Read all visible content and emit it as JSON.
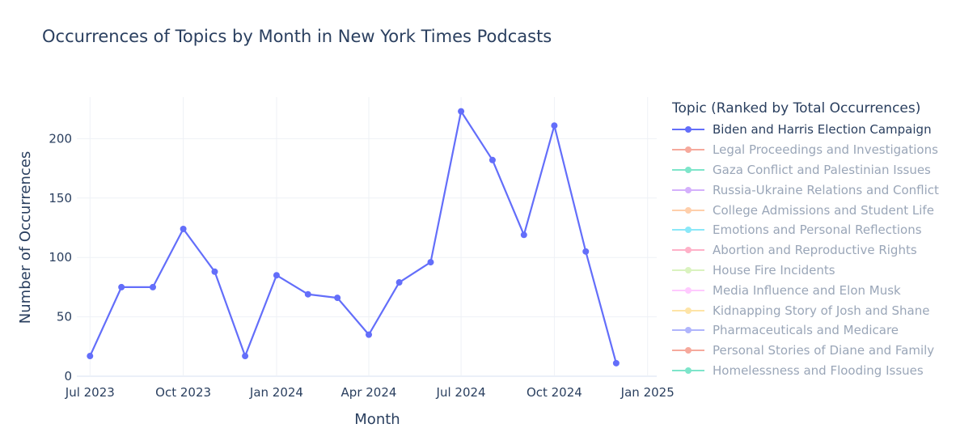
{
  "title": "Occurrences of Topics by Month in New York Times Podcasts",
  "legend_title": "Topic (Ranked by Total Occurrences)",
  "legend_items": [
    {
      "label": "Biden and Harris Election Campaign",
      "color": "#636efa",
      "active": true
    },
    {
      "label": "Legal Proceedings and Investigations",
      "color": "#ef553b",
      "active": false
    },
    {
      "label": "Gaza Conflict and Palestinian Issues",
      "color": "#00cc96",
      "active": false
    },
    {
      "label": "Russia-Ukraine Relations and Conflict",
      "color": "#ab63fa",
      "active": false
    },
    {
      "label": "College Admissions and Student Life",
      "color": "#ffa15a",
      "active": false
    },
    {
      "label": "Emotions and Personal Reflections",
      "color": "#19d3f3",
      "active": false
    },
    {
      "label": "Abortion and Reproductive Rights",
      "color": "#ff6692",
      "active": false
    },
    {
      "label": "House Fire Incidents",
      "color": "#b6e880",
      "active": false
    },
    {
      "label": "Media Influence and Elon Musk",
      "color": "#ff97ff",
      "active": false
    },
    {
      "label": "Kidnapping Story of Josh and Shane",
      "color": "#fecb52",
      "active": false
    },
    {
      "label": "Pharmaceuticals and Medicare",
      "color": "#636efa",
      "active": false
    },
    {
      "label": "Personal Stories of Diane and Family",
      "color": "#ef553b",
      "active": false
    },
    {
      "label": "Homelessness and Flooding Issues",
      "color": "#00cc96",
      "active": false
    }
  ],
  "chart_data": {
    "type": "line",
    "title": "Occurrences of Topics by Month in New York Times Podcasts",
    "xlabel": "Month",
    "ylabel": "Number of Occurrences",
    "x_tick_labels": [
      "Jul 2023",
      "Oct 2023",
      "Jan 2024",
      "Apr 2024",
      "Jul 2024",
      "Oct 2024",
      "Jan 2025"
    ],
    "y_ticks": [
      0,
      50,
      100,
      150,
      200
    ],
    "ylim": [
      0,
      235
    ],
    "xlim": [
      "2023-06-18",
      "2025-01-10"
    ],
    "grid": true,
    "legend_position": "right",
    "series": [
      {
        "name": "Biden and Harris Election Campaign",
        "color": "#636efa",
        "x": [
          "2023-07",
          "2023-08",
          "2023-09",
          "2023-10",
          "2023-11",
          "2023-12",
          "2024-01",
          "2024-02",
          "2024-03",
          "2024-04",
          "2024-05",
          "2024-06",
          "2024-07",
          "2024-08",
          "2024-09",
          "2024-10",
          "2024-11",
          "2024-12"
        ],
        "values": [
          17,
          75,
          75,
          124,
          88,
          17,
          85,
          69,
          66,
          35,
          79,
          96,
          223,
          182,
          119,
          211,
          105,
          11
        ]
      }
    ]
  }
}
